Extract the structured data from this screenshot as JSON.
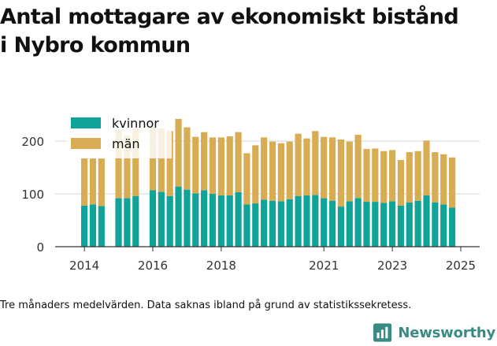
{
  "title_line1": "Antal mottagare av ekonomiskt bistånd",
  "title_line2": "i Nybro kommun",
  "footnote": "Tre månaders medelvärden. Data saknas ibland på grund av statistikssekretess.",
  "brand_name": "Newsworthy",
  "colors": {
    "kvinnor": "#0fa39a",
    "man": "#d8ac52",
    "grid": "#dddddd",
    "axis": "#333333",
    "brand": "#3a8a85"
  },
  "chart_data": {
    "type": "bar",
    "stacked": true,
    "ylim": [
      0,
      240
    ],
    "yticks": [
      0,
      100,
      200
    ],
    "xticks": [
      {
        "label": "2014",
        "pos": 0.5
      },
      {
        "label": "2016",
        "pos": 8.5
      },
      {
        "label": "2018",
        "pos": 16.5
      },
      {
        "label": "2021",
        "pos": 28.5
      },
      {
        "label": "2023",
        "pos": 36.5
      },
      {
        "label": "2025",
        "pos": 44.5
      }
    ],
    "legend_position": "top-left",
    "series": [
      {
        "name": "kvinnor",
        "color": "#0fa39a",
        "values": [
          78,
          80,
          77,
          null,
          92,
          92,
          96,
          null,
          107,
          104,
          96,
          114,
          108,
          101,
          107,
          100,
          97,
          97,
          103,
          80,
          82,
          89,
          87,
          86,
          90,
          96,
          97,
          98,
          92,
          87,
          76,
          86,
          92,
          85,
          85,
          83,
          86,
          78,
          84,
          87,
          97,
          84,
          80,
          74
        ]
      },
      {
        "name": "män",
        "color": "#d8ac52",
        "values": [
          89,
          87,
          90,
          null,
          129,
          119,
          128,
          null,
          120,
          120,
          123,
          128,
          118,
          107,
          110,
          107,
          110,
          112,
          114,
          97,
          110,
          118,
          112,
          110,
          109,
          118,
          108,
          121,
          116,
          120,
          127,
          113,
          120,
          100,
          101,
          98,
          97,
          86,
          95,
          94,
          104,
          95,
          95,
          95
        ]
      }
    ]
  }
}
